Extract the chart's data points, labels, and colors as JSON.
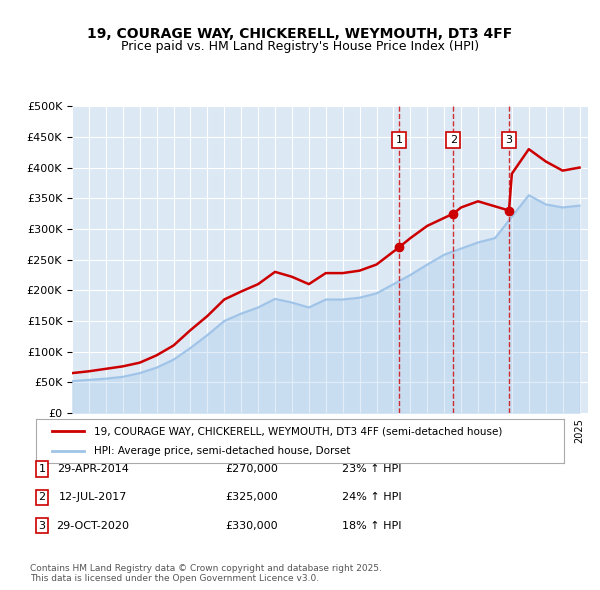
{
  "title": "19, COURAGE WAY, CHICKERELL, WEYMOUTH, DT3 4FF",
  "subtitle": "Price paid vs. HM Land Registry's House Price Index (HPI)",
  "background_color": "#ffffff",
  "plot_bg_color": "#dce9f5",
  "grid_color": "#ffffff",
  "ylim": [
    0,
    500000
  ],
  "yticks": [
    0,
    50000,
    100000,
    150000,
    200000,
    250000,
    300000,
    350000,
    400000,
    450000,
    500000
  ],
  "xlim_start": 1995.0,
  "xlim_end": 2025.5,
  "sale_color": "#cc0000",
  "hpi_color": "#a0c4e8",
  "sale_label": "19, COURAGE WAY, CHICKERELL, WEYMOUTH, DT3 4FF (semi-detached house)",
  "hpi_label": "HPI: Average price, semi-detached house, Dorset",
  "transactions": [
    {
      "num": 1,
      "date_label": "29-APR-2014",
      "price": 270000,
      "pct": "23%",
      "x": 2014.33
    },
    {
      "num": 2,
      "date_label": "12-JUL-2017",
      "price": 325000,
      "pct": "24%",
      "x": 2017.54
    },
    {
      "num": 3,
      "date_label": "29-OCT-2020",
      "price": 330000,
      "pct": "18%",
      "x": 2020.83
    }
  ],
  "footer": "Contains HM Land Registry data © Crown copyright and database right 2025.\nThis data is licensed under the Open Government Licence v3.0.",
  "hpi_years": [
    1995,
    1996,
    1997,
    1998,
    1999,
    2000,
    2001,
    2002,
    2003,
    2004,
    2005,
    2006,
    2007,
    2008,
    2009,
    2010,
    2011,
    2012,
    2013,
    2014,
    2015,
    2016,
    2017,
    2018,
    2019,
    2020,
    2021,
    2022,
    2023,
    2024,
    2025
  ],
  "hpi_values": [
    52000,
    54000,
    56000,
    59000,
    65000,
    74000,
    87000,
    106000,
    127000,
    150000,
    162000,
    172000,
    186000,
    180000,
    172000,
    185000,
    185000,
    188000,
    195000,
    210000,
    225000,
    242000,
    258000,
    268000,
    278000,
    285000,
    320000,
    355000,
    340000,
    335000,
    338000
  ],
  "sale_years": [
    1995,
    1996,
    1997,
    1998,
    1999,
    2000,
    2001,
    2002,
    2003,
    2004,
    2005,
    2006,
    2007,
    2008,
    2009,
    2010,
    2011,
    2012,
    2013,
    2014.33,
    2015,
    2016,
    2017.54,
    2018,
    2019,
    2020.83,
    2021,
    2022,
    2023,
    2024,
    2025
  ],
  "sale_values": [
    65000,
    68000,
    72000,
    76000,
    82000,
    94000,
    110000,
    135000,
    158000,
    185000,
    198000,
    210000,
    230000,
    222000,
    210000,
    228000,
    228000,
    232000,
    242000,
    270000,
    285000,
    305000,
    325000,
    335000,
    345000,
    330000,
    390000,
    430000,
    410000,
    395000,
    400000
  ]
}
